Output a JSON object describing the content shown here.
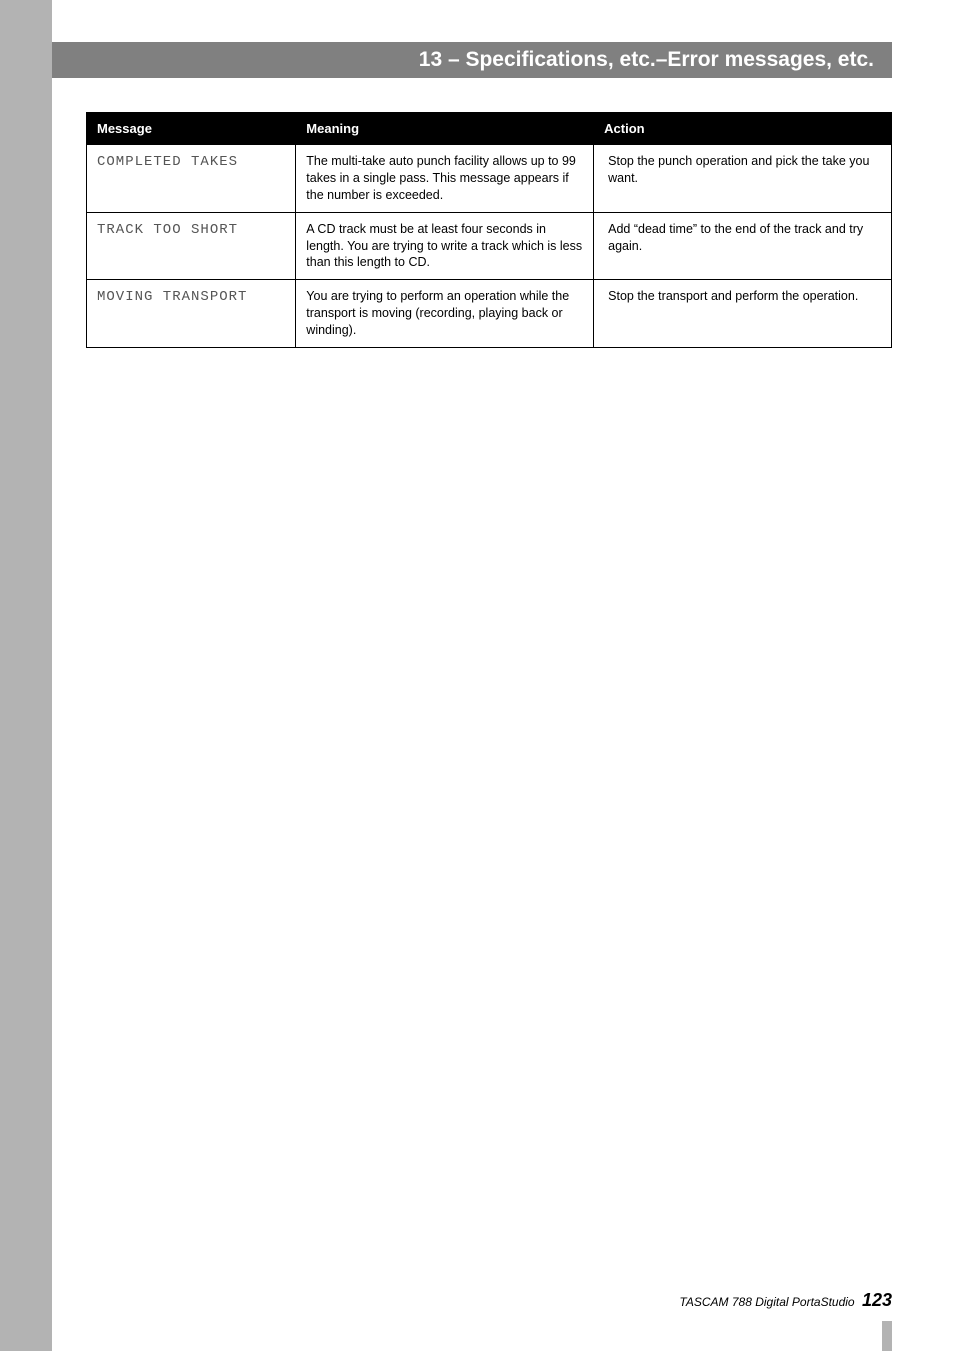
{
  "header": {
    "title": "13 – Specifications, etc.–Error messages, etc."
  },
  "table": {
    "columns": [
      "Message",
      "Meaning",
      "Action"
    ],
    "rows": [
      {
        "message": "COMPLETED TAKES",
        "meaning": "The multi-take auto punch facility allows up to 99 takes in a single pass. This message appears if the number is exceeded.",
        "action": "Stop the punch operation and pick the take you want."
      },
      {
        "message": "TRACK TOO SHORT",
        "meaning": "A CD track must be at least four seconds in length. You are trying to write a track which is less than this length to CD.",
        "action": "Add “dead time” to the end of the track and try again."
      },
      {
        "message": "MOVING TRANSPORT",
        "meaning": "You are trying to perform an operation while the transport is moving (recording, playing back or winding).",
        "action": "Stop the transport and perform the operation."
      }
    ]
  },
  "footer": {
    "text": "TASCAM 788 Digital PortaStudio",
    "page": "123"
  }
}
